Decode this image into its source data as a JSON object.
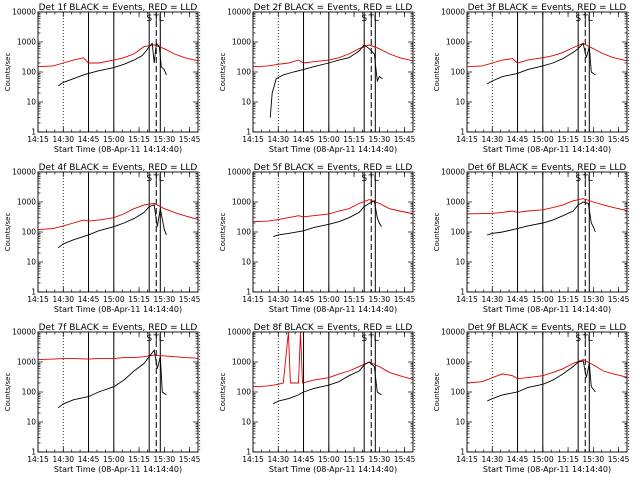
{
  "chart_data": {
    "type": "line",
    "x_unit": "minutes",
    "xlim": [
      14.25,
      14.833
    ],
    "ylim": [
      1,
      10000
    ],
    "yscale": "log",
    "x_tick_labels": [
      "14:15",
      "14:30",
      "14:45",
      "15:00",
      "15:15",
      "15:30",
      "15:45"
    ],
    "x_tick_hours": [
      14.25,
      14.5,
      14.75,
      15.0,
      15.25,
      15.5,
      15.75
    ],
    "y_tick_labels": [
      "1",
      "10",
      "100",
      "1000",
      "10000"
    ],
    "y_tick_values": [
      1,
      10,
      100,
      1000,
      10000
    ],
    "xlabel": "Start Time (08-Apr-11 14:14:40)",
    "ylabel": "Counts/sec",
    "markers": [
      {
        "label": "S",
        "hour": 15.35
      },
      {
        "label": "T",
        "hour": 15.42
      },
      {
        "label": "L",
        "hour": 15.47
      }
    ],
    "vertical_lines": {
      "dotted": [
        14.5,
        15.85
      ],
      "solid": [
        14.75,
        15.0,
        15.35,
        15.46
      ],
      "dashed": [
        15.42
      ]
    },
    "panels": [
      {
        "title": "Det 1f BLACK = Events, RED = LLD",
        "black": [
          [
            14.45,
            35
          ],
          [
            14.5,
            45
          ],
          [
            14.6,
            60
          ],
          [
            14.7,
            80
          ],
          [
            14.75,
            90
          ],
          [
            14.85,
            110
          ],
          [
            15.0,
            140
          ],
          [
            15.1,
            180
          ],
          [
            15.2,
            250
          ],
          [
            15.28,
            350
          ],
          [
            15.32,
            500
          ],
          [
            15.35,
            700
          ],
          [
            15.38,
            900
          ],
          [
            15.4,
            200
          ],
          [
            15.42,
            900
          ],
          [
            15.45,
            700
          ],
          [
            15.47,
            150
          ],
          [
            15.5,
            120
          ],
          [
            15.52,
            80
          ]
        ],
        "red": [
          [
            14.25,
            150
          ],
          [
            14.4,
            160
          ],
          [
            14.5,
            200
          ],
          [
            14.6,
            250
          ],
          [
            14.7,
            300
          ],
          [
            14.75,
            200
          ],
          [
            14.85,
            200
          ],
          [
            15.0,
            250
          ],
          [
            15.1,
            300
          ],
          [
            15.2,
            400
          ],
          [
            15.3,
            700
          ],
          [
            15.4,
            800
          ],
          [
            15.5,
            600
          ],
          [
            15.6,
            400
          ],
          [
            15.7,
            300
          ],
          [
            15.8,
            250
          ],
          [
            15.85,
            230
          ]
        ]
      },
      {
        "title": "Det 2f BLACK = Events, RED = LLD",
        "black": [
          [
            14.42,
            3
          ],
          [
            14.44,
            20
          ],
          [
            14.48,
            60
          ],
          [
            14.55,
            80
          ],
          [
            14.65,
            100
          ],
          [
            14.75,
            120
          ],
          [
            14.85,
            150
          ],
          [
            15.0,
            200
          ],
          [
            15.1,
            250
          ],
          [
            15.2,
            300
          ],
          [
            15.3,
            500
          ],
          [
            15.35,
            800
          ],
          [
            15.4,
            600
          ],
          [
            15.45,
            400
          ],
          [
            15.48,
            50
          ],
          [
            15.5,
            70
          ],
          [
            15.53,
            60
          ]
        ],
        "red": [
          [
            14.25,
            150
          ],
          [
            14.4,
            160
          ],
          [
            14.5,
            180
          ],
          [
            14.6,
            200
          ],
          [
            14.7,
            250
          ],
          [
            14.75,
            200
          ],
          [
            14.85,
            220
          ],
          [
            15.0,
            250
          ],
          [
            15.1,
            300
          ],
          [
            15.2,
            400
          ],
          [
            15.3,
            600
          ],
          [
            15.4,
            800
          ],
          [
            15.5,
            600
          ],
          [
            15.6,
            400
          ],
          [
            15.7,
            300
          ],
          [
            15.8,
            250
          ],
          [
            15.85,
            230
          ]
        ]
      },
      {
        "title": "Det 3f BLACK = Events, RED = LLD",
        "black": [
          [
            14.45,
            40
          ],
          [
            14.5,
            50
          ],
          [
            14.6,
            70
          ],
          [
            14.75,
            90
          ],
          [
            14.85,
            120
          ],
          [
            15.0,
            160
          ],
          [
            15.1,
            200
          ],
          [
            15.2,
            280
          ],
          [
            15.3,
            450
          ],
          [
            15.35,
            600
          ],
          [
            15.4,
            900
          ],
          [
            15.43,
            300
          ],
          [
            15.46,
            700
          ],
          [
            15.48,
            100
          ],
          [
            15.52,
            80
          ]
        ],
        "red": [
          [
            14.25,
            150
          ],
          [
            14.4,
            160
          ],
          [
            14.5,
            200
          ],
          [
            14.6,
            250
          ],
          [
            14.7,
            280
          ],
          [
            14.75,
            200
          ],
          [
            14.85,
            250
          ],
          [
            15.0,
            300
          ],
          [
            15.1,
            350
          ],
          [
            15.2,
            450
          ],
          [
            15.3,
            650
          ],
          [
            15.4,
            900
          ],
          [
            15.5,
            600
          ],
          [
            15.6,
            400
          ],
          [
            15.7,
            300
          ],
          [
            15.8,
            250
          ],
          [
            15.85,
            230
          ]
        ]
      },
      {
        "title": "Det 4f BLACK = Events, RED = LLD",
        "black": [
          [
            14.45,
            30
          ],
          [
            14.5,
            40
          ],
          [
            14.6,
            55
          ],
          [
            14.7,
            70
          ],
          [
            14.75,
            80
          ],
          [
            14.85,
            110
          ],
          [
            15.0,
            150
          ],
          [
            15.1,
            200
          ],
          [
            15.2,
            280
          ],
          [
            15.3,
            450
          ],
          [
            15.35,
            700
          ],
          [
            15.4,
            800
          ],
          [
            15.43,
            150
          ],
          [
            15.46,
            600
          ],
          [
            15.5,
            120
          ],
          [
            15.52,
            80
          ]
        ],
        "red": [
          [
            14.25,
            120
          ],
          [
            14.4,
            130
          ],
          [
            14.5,
            160
          ],
          [
            14.6,
            200
          ],
          [
            14.7,
            250
          ],
          [
            14.75,
            230
          ],
          [
            14.85,
            250
          ],
          [
            15.0,
            300
          ],
          [
            15.1,
            400
          ],
          [
            15.2,
            600
          ],
          [
            15.3,
            800
          ],
          [
            15.4,
            900
          ],
          [
            15.5,
            600
          ],
          [
            15.6,
            450
          ],
          [
            15.7,
            350
          ],
          [
            15.8,
            280
          ],
          [
            15.85,
            250
          ]
        ]
      },
      {
        "title": "Det 5f BLACK = Events, RED = LLD",
        "black": [
          [
            14.45,
            70
          ],
          [
            14.5,
            80
          ],
          [
            14.6,
            90
          ],
          [
            14.75,
            110
          ],
          [
            14.85,
            140
          ],
          [
            15.0,
            180
          ],
          [
            15.1,
            220
          ],
          [
            15.2,
            300
          ],
          [
            15.3,
            450
          ],
          [
            15.35,
            700
          ],
          [
            15.4,
            900
          ],
          [
            15.45,
            1100
          ],
          [
            15.48,
            300
          ],
          [
            15.5,
            200
          ],
          [
            15.52,
            150
          ]
        ],
        "red": [
          [
            14.25,
            220
          ],
          [
            14.4,
            230
          ],
          [
            14.5,
            260
          ],
          [
            14.6,
            300
          ],
          [
            14.7,
            350
          ],
          [
            14.75,
            320
          ],
          [
            14.85,
            350
          ],
          [
            15.0,
            400
          ],
          [
            15.1,
            500
          ],
          [
            15.2,
            600
          ],
          [
            15.3,
            900
          ],
          [
            15.4,
            1200
          ],
          [
            15.5,
            900
          ],
          [
            15.6,
            600
          ],
          [
            15.7,
            500
          ],
          [
            15.8,
            430
          ],
          [
            15.85,
            400
          ]
        ]
      },
      {
        "title": "Det 6f BLACK = Events, RED = LLD",
        "black": [
          [
            14.45,
            80
          ],
          [
            14.5,
            90
          ],
          [
            14.6,
            100
          ],
          [
            14.75,
            130
          ],
          [
            14.85,
            160
          ],
          [
            15.0,
            200
          ],
          [
            15.1,
            250
          ],
          [
            15.2,
            350
          ],
          [
            15.3,
            500
          ],
          [
            15.35,
            800
          ],
          [
            15.4,
            1000
          ],
          [
            15.45,
            900
          ],
          [
            15.48,
            200
          ],
          [
            15.5,
            150
          ],
          [
            15.52,
            100
          ]
        ],
        "red": [
          [
            14.25,
            400
          ],
          [
            14.4,
            410
          ],
          [
            14.5,
            420
          ],
          [
            14.6,
            450
          ],
          [
            14.7,
            500
          ],
          [
            14.75,
            450
          ],
          [
            14.85,
            500
          ],
          [
            15.0,
            550
          ],
          [
            15.1,
            650
          ],
          [
            15.2,
            800
          ],
          [
            15.3,
            1100
          ],
          [
            15.4,
            1300
          ],
          [
            15.5,
            1000
          ],
          [
            15.6,
            800
          ],
          [
            15.7,
            650
          ],
          [
            15.8,
            550
          ],
          [
            15.85,
            500
          ]
        ]
      },
      {
        "title": "Det 7f BLACK = Events, RED = LLD",
        "black": [
          [
            14.45,
            30
          ],
          [
            14.5,
            40
          ],
          [
            14.6,
            55
          ],
          [
            14.75,
            70
          ],
          [
            14.85,
            100
          ],
          [
            15.0,
            150
          ],
          [
            15.1,
            250
          ],
          [
            15.2,
            500
          ],
          [
            15.3,
            900
          ],
          [
            15.35,
            1500
          ],
          [
            15.4,
            2500
          ],
          [
            15.43,
            600
          ],
          [
            15.46,
            1500
          ],
          [
            15.48,
            100
          ],
          [
            15.52,
            80
          ]
        ],
        "red": [
          [
            14.25,
            1200
          ],
          [
            14.4,
            1250
          ],
          [
            14.5,
            1300
          ],
          [
            14.6,
            1300
          ],
          [
            14.75,
            1250
          ],
          [
            14.85,
            1300
          ],
          [
            15.0,
            1300
          ],
          [
            15.1,
            1400
          ],
          [
            15.2,
            1400
          ],
          [
            15.3,
            1500
          ],
          [
            15.4,
            1700
          ],
          [
            15.5,
            1600
          ],
          [
            15.6,
            1500
          ],
          [
            15.7,
            1400
          ],
          [
            15.8,
            1350
          ],
          [
            15.85,
            1300
          ]
        ]
      },
      {
        "title": "Det 8f BLACK = Events, RED = LLD",
        "black": [
          [
            14.45,
            40
          ],
          [
            14.5,
            50
          ],
          [
            14.6,
            60
          ],
          [
            14.7,
            80
          ],
          [
            14.75,
            100
          ],
          [
            14.85,
            130
          ],
          [
            15.0,
            170
          ],
          [
            15.1,
            220
          ],
          [
            15.2,
            350
          ],
          [
            15.3,
            500
          ],
          [
            15.35,
            800
          ],
          [
            15.4,
            1000
          ],
          [
            15.45,
            700
          ],
          [
            15.48,
            100
          ],
          [
            15.52,
            80
          ]
        ],
        "red": [
          [
            14.25,
            150
          ],
          [
            14.4,
            160
          ],
          [
            14.5,
            180
          ],
          [
            14.55,
            200
          ],
          [
            14.6,
            10000
          ],
          [
            14.62,
            200
          ],
          [
            14.7,
            200
          ],
          [
            14.72,
            10000
          ],
          [
            14.74,
            200
          ],
          [
            14.85,
            250
          ],
          [
            15.0,
            300
          ],
          [
            15.1,
            400
          ],
          [
            15.2,
            500
          ],
          [
            15.3,
            700
          ],
          [
            15.4,
            1000
          ],
          [
            15.5,
            700
          ],
          [
            15.6,
            450
          ],
          [
            15.7,
            350
          ],
          [
            15.8,
            280
          ],
          [
            15.85,
            250
          ]
        ]
      },
      {
        "title": "Det 9f BLACK = Events, RED = LLD",
        "black": [
          [
            14.45,
            50
          ],
          [
            14.5,
            60
          ],
          [
            14.6,
            80
          ],
          [
            14.75,
            100
          ],
          [
            14.85,
            140
          ],
          [
            15.0,
            180
          ],
          [
            15.1,
            250
          ],
          [
            15.2,
            400
          ],
          [
            15.3,
            700
          ],
          [
            15.35,
            1000
          ],
          [
            15.4,
            1100
          ],
          [
            15.43,
            300
          ],
          [
            15.46,
            900
          ],
          [
            15.48,
            150
          ],
          [
            15.52,
            100
          ]
        ],
        "red": [
          [
            14.25,
            200
          ],
          [
            14.4,
            220
          ],
          [
            14.5,
            300
          ],
          [
            14.6,
            400
          ],
          [
            14.7,
            350
          ],
          [
            14.75,
            280
          ],
          [
            14.85,
            300
          ],
          [
            15.0,
            350
          ],
          [
            15.1,
            450
          ],
          [
            15.2,
            600
          ],
          [
            15.3,
            900
          ],
          [
            15.4,
            1200
          ],
          [
            15.5,
            800
          ],
          [
            15.6,
            500
          ],
          [
            15.7,
            400
          ],
          [
            15.8,
            330
          ],
          [
            15.85,
            300
          ]
        ]
      }
    ]
  }
}
